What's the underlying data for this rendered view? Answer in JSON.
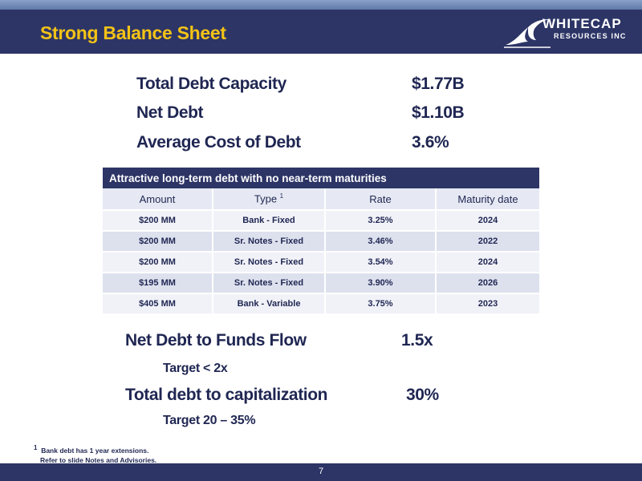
{
  "header": {
    "title": "Strong Balance Sheet",
    "logo_line1": "WHITECAP",
    "logo_line2": "RESOURCES INC"
  },
  "metrics": [
    {
      "label": "Total Debt Capacity",
      "value": "$1.77B"
    },
    {
      "label": "Net Debt",
      "value": "$1.10B"
    },
    {
      "label": "Average Cost of Debt",
      "value": "3.6%"
    }
  ],
  "table": {
    "title": "Attractive long-term debt with no near-term maturities",
    "columns": [
      "Amount",
      "Type",
      "Rate",
      "Maturity date"
    ],
    "type_footnote_mark": "1",
    "rows": [
      [
        "$200 MM",
        "Bank - Fixed",
        "3.25%",
        "2024"
      ],
      [
        "$200 MM",
        "Sr. Notes - Fixed",
        "3.46%",
        "2022"
      ],
      [
        "$200 MM",
        "Sr. Notes - Fixed",
        "3.54%",
        "2024"
      ],
      [
        "$195 MM",
        "Sr. Notes - Fixed",
        "3.90%",
        "2026"
      ],
      [
        "$405 MM",
        "Bank - Variable",
        "3.75%",
        "2023"
      ]
    ]
  },
  "ratios": [
    {
      "label": "Net Debt to Funds Flow",
      "value": "1.5x",
      "target": "Target < 2x"
    },
    {
      "label": "Total debt to capitalization",
      "value": "30%",
      "target": "Target 20 – 35%"
    }
  ],
  "footnote": {
    "mark": "1",
    "line1": "Bank debt has 1 year extensions.",
    "line2": "Refer to slide Notes and Advisories."
  },
  "page_number": "7"
}
